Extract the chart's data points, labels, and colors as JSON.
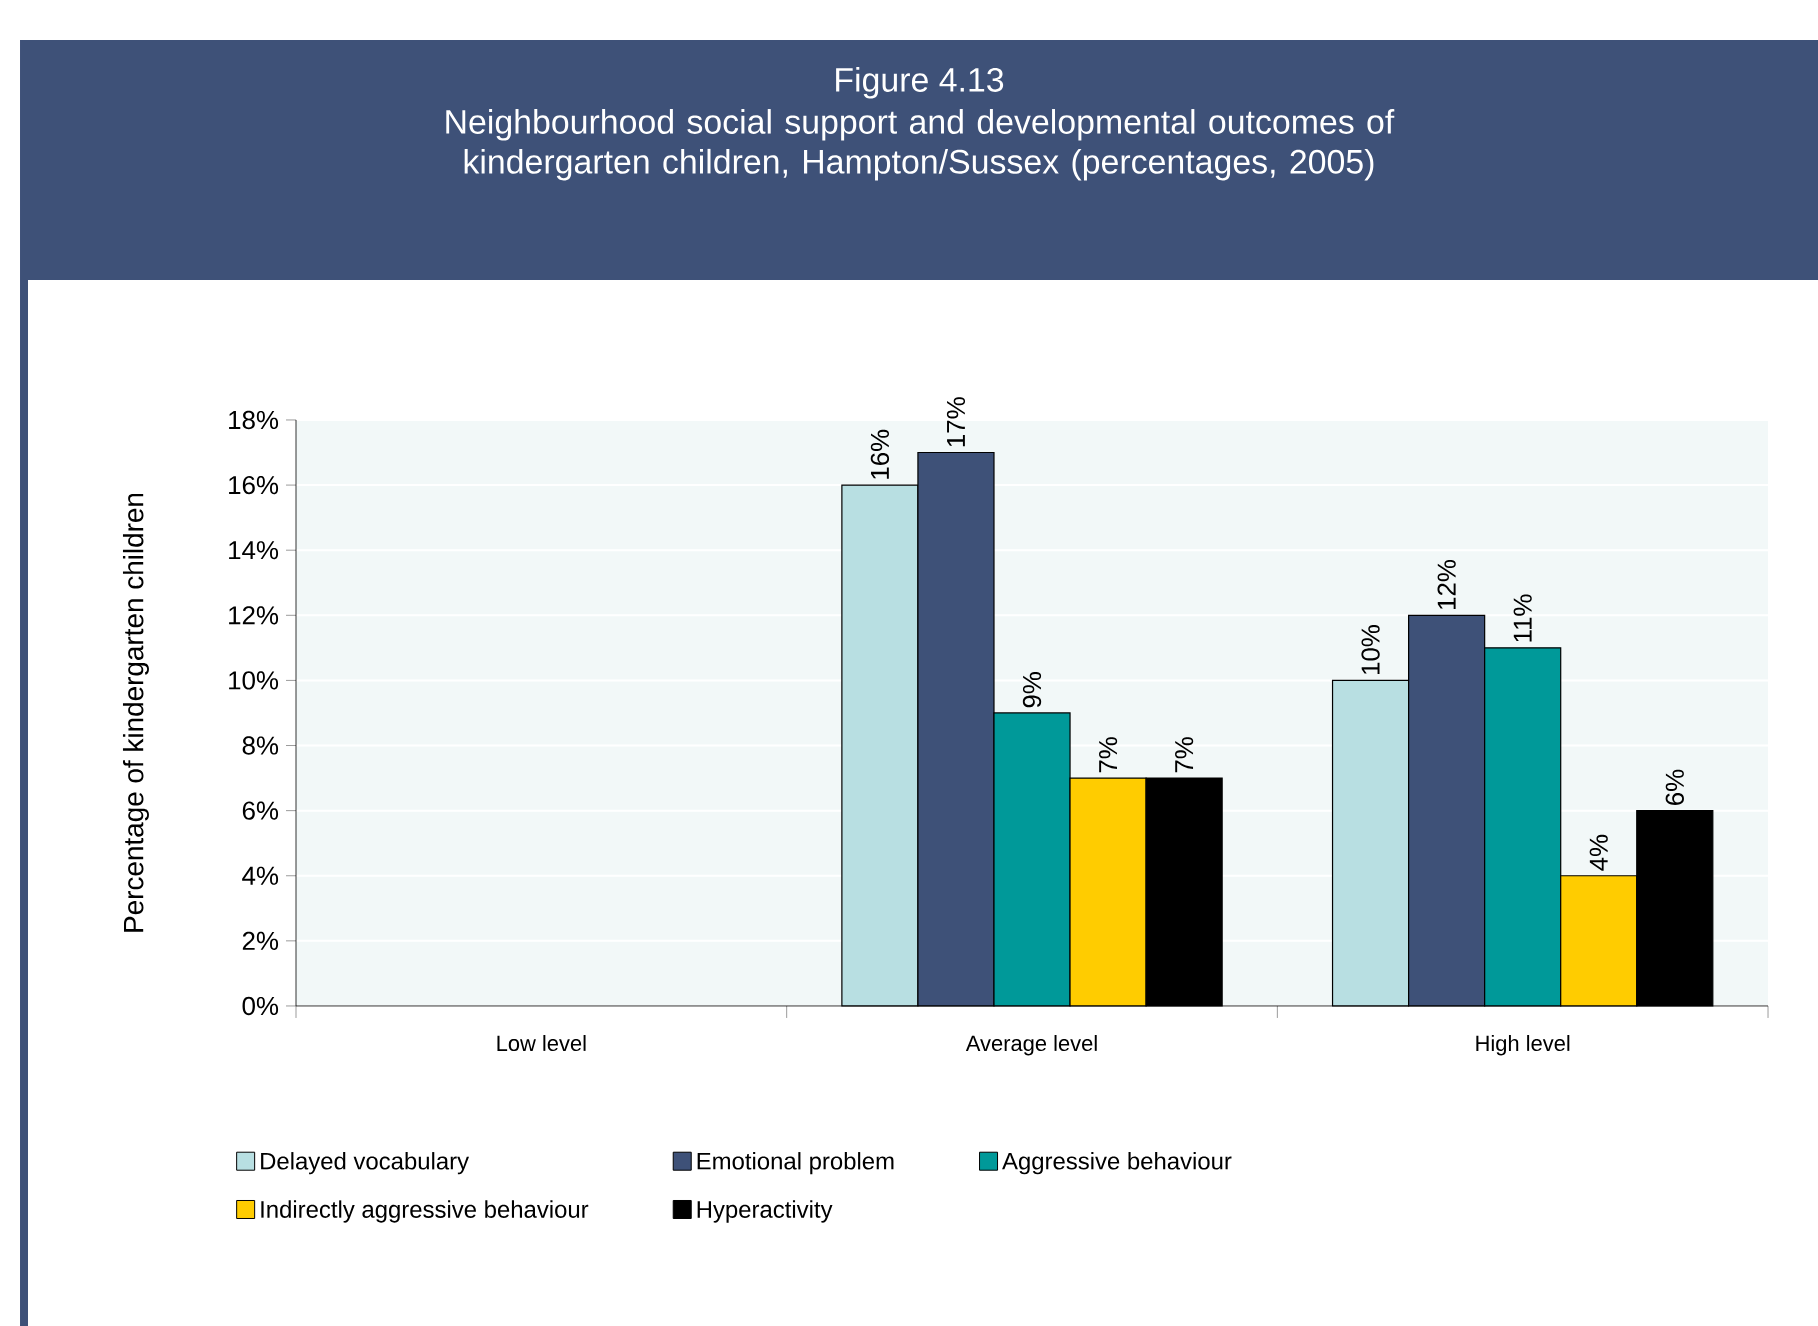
{
  "chart_data": {
    "type": "bar",
    "title": "Figure 4.13",
    "subtitle": "Neighbourhood social support and developmental outcomes of kindergarten children, Hampton/Sussex  (percentages, 2005)",
    "ylabel": "Percentage of kindergarten children",
    "categories": [
      "Low level",
      "Average level",
      "High level"
    ],
    "series": [
      {
        "name": "Delayed vocabulary",
        "color": "#b8dfe2",
        "values": [
          null,
          16,
          10
        ],
        "value_labels": [
          null,
          "16%",
          "10%"
        ]
      },
      {
        "name": "Emotional problem",
        "color": "#3e5178",
        "values": [
          null,
          17,
          12
        ],
        "value_labels": [
          null,
          "17%",
          "12%"
        ]
      },
      {
        "name": "Aggressive behaviour",
        "color": "#009999",
        "values": [
          null,
          9,
          11
        ],
        "value_labels": [
          null,
          "9%",
          "11%"
        ]
      },
      {
        "name": "Indirectly aggressive behaviour",
        "color": "#ffcc00",
        "values": [
          null,
          7,
          4
        ],
        "value_labels": [
          null,
          "7%",
          "4%"
        ]
      },
      {
        "name": "Hyperactivity",
        "color": "#000000",
        "values": [
          null,
          7,
          6
        ],
        "value_labels": [
          null,
          "7%",
          "6%"
        ]
      }
    ],
    "ylim": [
      0,
      18
    ],
    "yticks": [
      {
        "value": 0,
        "label": "0%"
      },
      {
        "value": 2,
        "label": "2%"
      },
      {
        "value": 4,
        "label": "4%"
      },
      {
        "value": 6,
        "label": "6%"
      },
      {
        "value": 8,
        "label": "8%"
      },
      {
        "value": 10,
        "label": "10%"
      },
      {
        "value": 12,
        "label": "12%"
      },
      {
        "value": 14,
        "label": "14%"
      },
      {
        "value": 16,
        "label": "16%"
      },
      {
        "value": 18,
        "label": "18%"
      }
    ],
    "grid": "y",
    "legend": "bottom"
  }
}
